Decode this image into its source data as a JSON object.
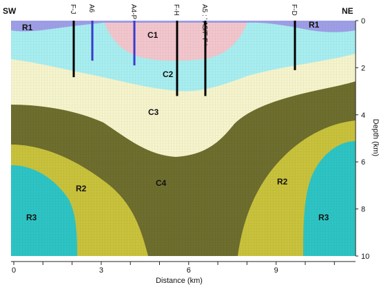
{
  "corner_labels": {
    "left": "SW",
    "right": "NE"
  },
  "wells": [
    {
      "label": "F-J",
      "color": "#000000",
      "bottom_km": 2.4
    },
    {
      "label": "A6",
      "color": "#3a3ad0",
      "bottom_km": 1.7
    },
    {
      "label": "A4-P",
      "color": "#3a3ad0",
      "bottom_km": 1.9
    },
    {
      "label": "F-H",
      "color": "#000000",
      "bottom_km": 3.2
    },
    {
      "label": "A5 : ' A5/F-F '",
      "color": "#000000",
      "bottom_km": 3.2
    },
    {
      "label": "F-D",
      "color": "#000000",
      "bottom_km": 2.1
    }
  ],
  "layers": [
    {
      "id": "R1",
      "labels": [
        "R1",
        "R1"
      ],
      "color": "#9f9fe8"
    },
    {
      "id": "C1",
      "labels": [
        "C1"
      ],
      "color": "#f2c6cc"
    },
    {
      "id": "C2",
      "labels": [
        "C2"
      ],
      "color": "#a8eef0"
    },
    {
      "id": "C3",
      "labels": [
        "C3"
      ],
      "color": "#f6f4cc"
    },
    {
      "id": "C4",
      "labels": [
        "C4"
      ],
      "color": "#6e6e2e"
    },
    {
      "id": "R2",
      "labels": [
        "R2",
        "R2"
      ],
      "color": "#c9c23c"
    },
    {
      "id": "R3",
      "labels": [
        "R3",
        "R3"
      ],
      "color": "#2ec4c4"
    }
  ],
  "x_axis": {
    "label": "Distance (km)",
    "ticks": [
      "0",
      "3",
      "6",
      "9"
    ]
  },
  "y_axis": {
    "label": "Depth (km)",
    "ticks": [
      "0",
      "2",
      "4",
      "6",
      "8",
      "10"
    ]
  }
}
